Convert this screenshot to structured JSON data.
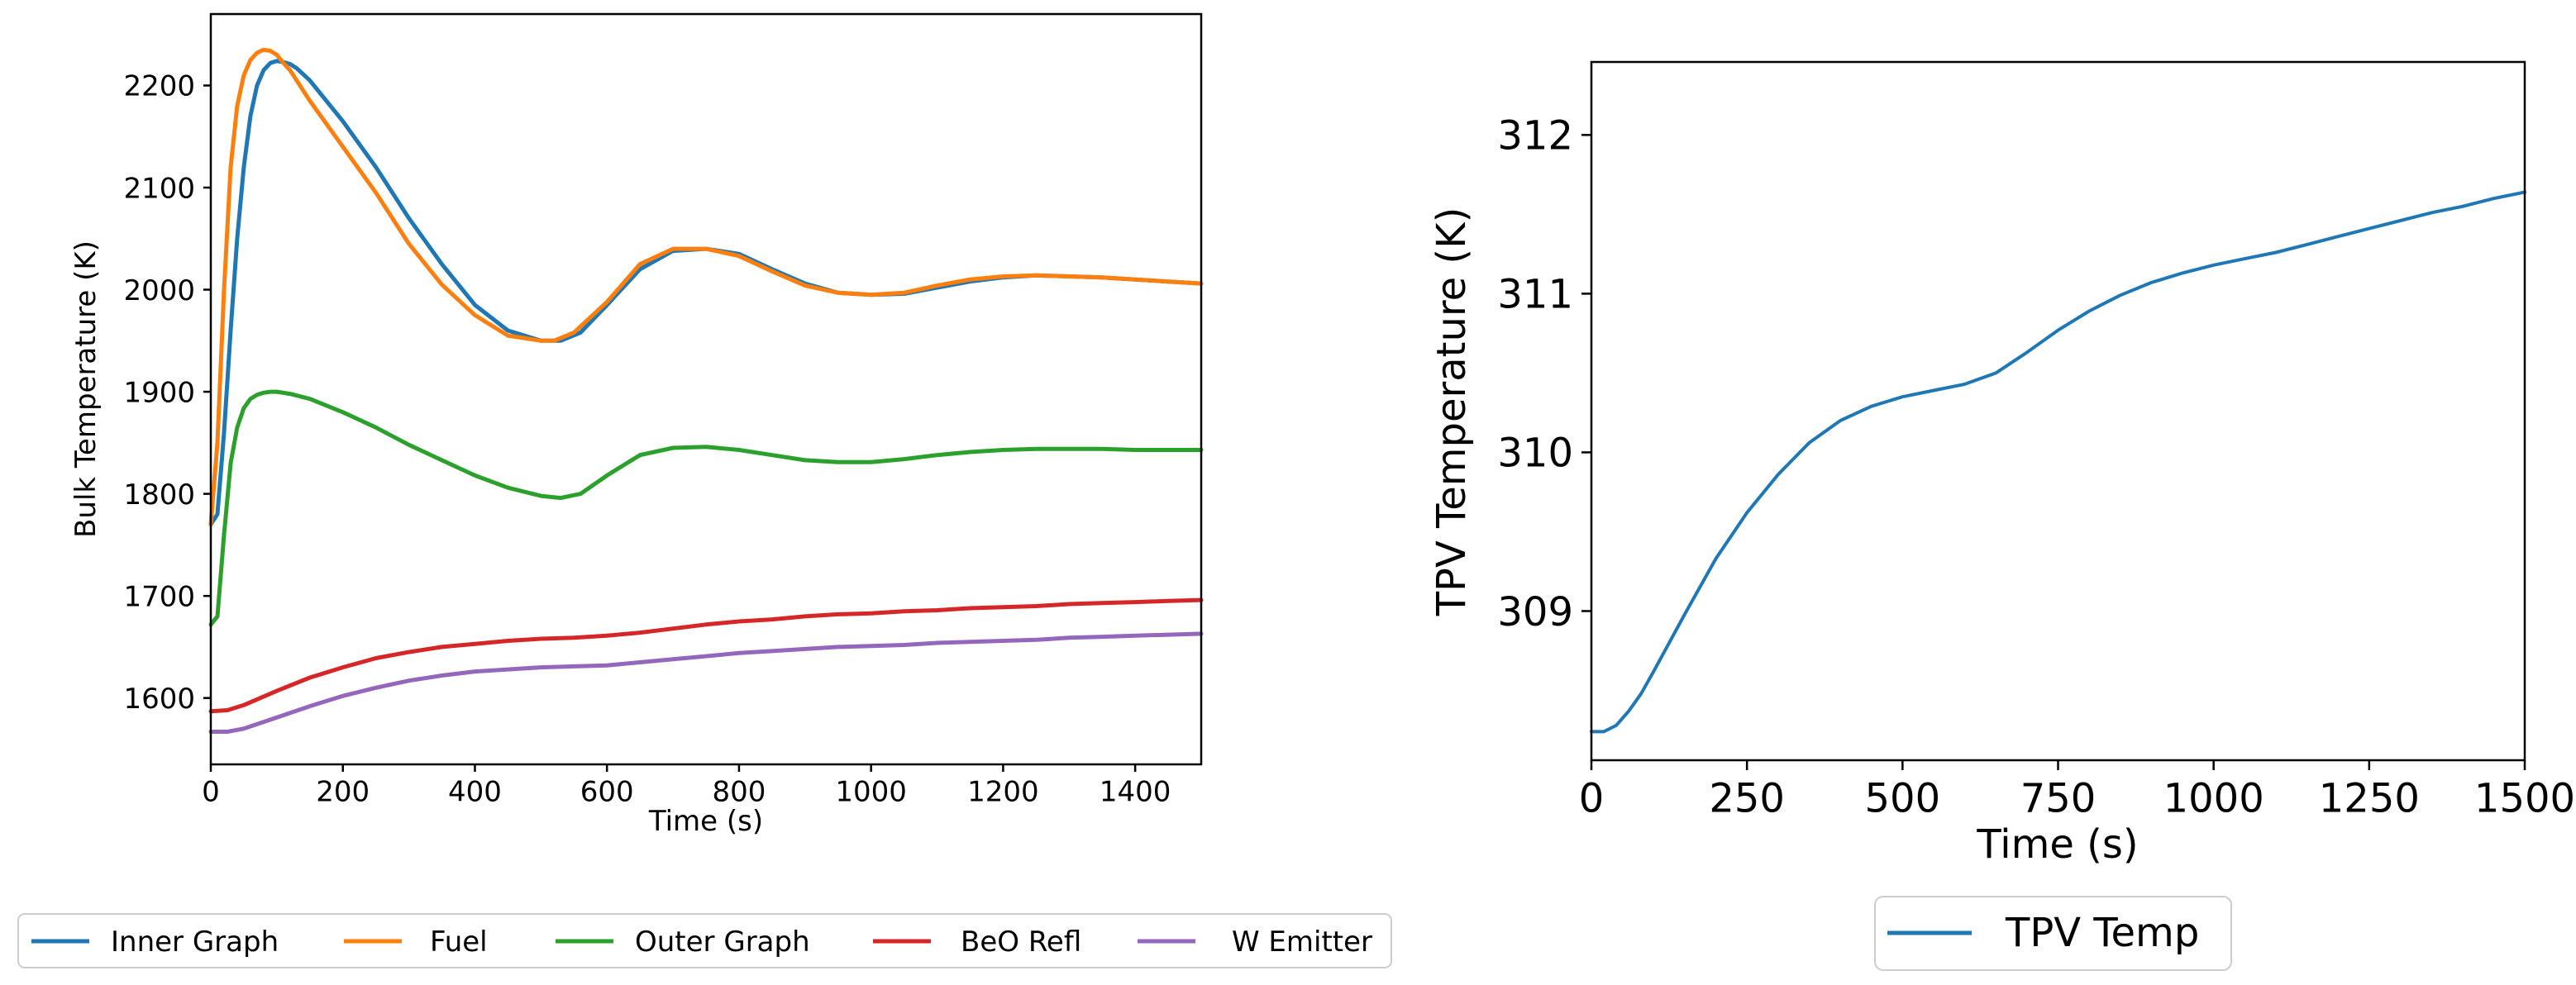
{
  "chart_data": [
    {
      "type": "line",
      "title": "",
      "xlabel": "Time (s)",
      "ylabel": "Bulk Temperature (K)",
      "xlim": [
        0,
        1500
      ],
      "ylim": [
        1535,
        2270
      ],
      "xticks": [
        0,
        200,
        400,
        600,
        800,
        1000,
        1200,
        1400
      ],
      "yticks": [
        1600,
        1700,
        1800,
        1900,
        2000,
        2100,
        2200
      ],
      "legend_position": "bottom",
      "series": [
        {
          "name": "Inner Graph",
          "color": "#1f77b4",
          "x": [
            0,
            10,
            20,
            30,
            40,
            50,
            60,
            70,
            80,
            90,
            100,
            110,
            120,
            130,
            150,
            200,
            250,
            300,
            350,
            400,
            450,
            500,
            530,
            560,
            600,
            650,
            700,
            750,
            800,
            850,
            900,
            950,
            1000,
            1050,
            1100,
            1150,
            1200,
            1250,
            1300,
            1350,
            1400,
            1450,
            1500
          ],
          "y": [
            1770,
            1780,
            1860,
            1960,
            2050,
            2120,
            2170,
            2200,
            2215,
            2222,
            2224,
            2223,
            2221,
            2217,
            2205,
            2165,
            2120,
            2070,
            2025,
            1985,
            1960,
            1950,
            1950,
            1958,
            1985,
            2020,
            2038,
            2040,
            2035,
            2020,
            2006,
            1997,
            1995,
            1996,
            2002,
            2008,
            2012,
            2014,
            2013,
            2012,
            2010,
            2008,
            2006
          ]
        },
        {
          "name": "Fuel",
          "color": "#ff7f0e",
          "x": [
            0,
            10,
            20,
            30,
            40,
            50,
            60,
            70,
            80,
            90,
            100,
            110,
            120,
            130,
            150,
            200,
            250,
            300,
            350,
            400,
            450,
            500,
            520,
            550,
            600,
            650,
            700,
            750,
            800,
            850,
            900,
            950,
            1000,
            1050,
            1100,
            1150,
            1200,
            1250,
            1300,
            1350,
            1400,
            1450,
            1500
          ],
          "y": [
            1770,
            1850,
            2000,
            2120,
            2180,
            2210,
            2225,
            2232,
            2235,
            2234,
            2230,
            2222,
            2215,
            2205,
            2185,
            2140,
            2095,
            2045,
            2005,
            1975,
            1955,
            1950,
            1950,
            1958,
            1988,
            2025,
            2040,
            2040,
            2033,
            2018,
            2004,
            1997,
            1995,
            1997,
            2004,
            2010,
            2013,
            2014,
            2013,
            2012,
            2010,
            2008,
            2006
          ]
        },
        {
          "name": "Outer Graph",
          "color": "#2ca02c",
          "x": [
            0,
            10,
            20,
            30,
            40,
            50,
            60,
            70,
            80,
            90,
            100,
            120,
            150,
            200,
            250,
            300,
            350,
            400,
            450,
            500,
            530,
            560,
            600,
            650,
            700,
            750,
            800,
            850,
            900,
            950,
            1000,
            1050,
            1100,
            1150,
            1200,
            1250,
            1300,
            1350,
            1400,
            1450,
            1500
          ],
          "y": [
            1672,
            1680,
            1760,
            1830,
            1865,
            1884,
            1893,
            1897,
            1899,
            1900,
            1900,
            1898,
            1893,
            1880,
            1865,
            1848,
            1833,
            1818,
            1806,
            1798,
            1796,
            1800,
            1818,
            1838,
            1845,
            1846,
            1843,
            1838,
            1833,
            1831,
            1831,
            1834,
            1838,
            1841,
            1843,
            1844,
            1844,
            1844,
            1843,
            1843,
            1843
          ]
        },
        {
          "name": "BeO Refl",
          "color": "#d62728",
          "x": [
            0,
            25,
            50,
            100,
            150,
            200,
            250,
            300,
            350,
            400,
            450,
            500,
            550,
            600,
            650,
            700,
            750,
            800,
            850,
            900,
            950,
            1000,
            1050,
            1100,
            1150,
            1200,
            1250,
            1300,
            1350,
            1400,
            1450,
            1500
          ],
          "y": [
            1587,
            1588,
            1593,
            1607,
            1620,
            1630,
            1639,
            1645,
            1650,
            1653,
            1656,
            1658,
            1659,
            1661,
            1664,
            1668,
            1672,
            1675,
            1677,
            1680,
            1682,
            1683,
            1685,
            1686,
            1688,
            1689,
            1690,
            1692,
            1693,
            1694,
            1695,
            1696
          ]
        },
        {
          "name": "W Emitter",
          "color": "#9467bd",
          "x": [
            0,
            25,
            50,
            100,
            150,
            200,
            250,
            300,
            350,
            400,
            450,
            500,
            550,
            600,
            650,
            700,
            750,
            800,
            850,
            900,
            950,
            1000,
            1050,
            1100,
            1150,
            1200,
            1250,
            1300,
            1350,
            1400,
            1450,
            1500
          ],
          "y": [
            1567,
            1567,
            1570,
            1581,
            1592,
            1602,
            1610,
            1617,
            1622,
            1626,
            1628,
            1630,
            1631,
            1632,
            1635,
            1638,
            1641,
            1644,
            1646,
            1648,
            1650,
            1651,
            1652,
            1654,
            1655,
            1656,
            1657,
            1659,
            1660,
            1661,
            1662,
            1663
          ]
        }
      ]
    },
    {
      "type": "line",
      "title": "",
      "xlabel": "Time (s)",
      "ylabel": "TPV Temperature (K)",
      "xlim": [
        0,
        1500
      ],
      "ylim": [
        308.06,
        312.46
      ],
      "xticks": [
        0,
        250,
        500,
        750,
        1000,
        1250,
        1500
      ],
      "yticks": [
        309,
        310,
        311,
        312
      ],
      "legend_position": "bottom",
      "series": [
        {
          "name": "TPV Temp",
          "color": "#1f77b4",
          "x": [
            0,
            20,
            40,
            60,
            80,
            100,
            150,
            200,
            250,
            300,
            350,
            400,
            450,
            500,
            550,
            600,
            650,
            700,
            750,
            800,
            850,
            900,
            950,
            1000,
            1050,
            1100,
            1150,
            1200,
            1250,
            1300,
            1350,
            1400,
            1450,
            1500
          ],
          "y": [
            308.24,
            308.24,
            308.28,
            308.37,
            308.48,
            308.62,
            308.98,
            309.33,
            309.62,
            309.86,
            310.06,
            310.2,
            310.29,
            310.35,
            310.39,
            310.43,
            310.5,
            310.63,
            310.77,
            310.89,
            310.99,
            311.07,
            311.13,
            311.18,
            311.22,
            311.26,
            311.31,
            311.36,
            311.41,
            311.46,
            311.51,
            311.55,
            311.6,
            311.64
          ]
        }
      ]
    }
  ]
}
